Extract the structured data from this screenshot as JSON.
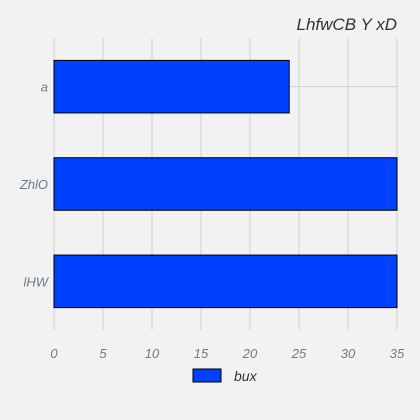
{
  "chart_data": {
    "type": "bar",
    "orientation": "horizontal",
    "title": "LhfwCB Y xD",
    "categories": [
      "a",
      "ZhlO",
      "lHW"
    ],
    "series": [
      {
        "name": "bux",
        "values": [
          24,
          35,
          35
        ]
      }
    ],
    "xlim": [
      0,
      35
    ],
    "xticks": [
      0,
      5,
      10,
      15,
      20,
      25,
      30,
      35
    ],
    "grid": true,
    "legend_position": "bottom",
    "colors": {
      "bar": "#0040ff",
      "bar_edge": "#000000"
    }
  }
}
